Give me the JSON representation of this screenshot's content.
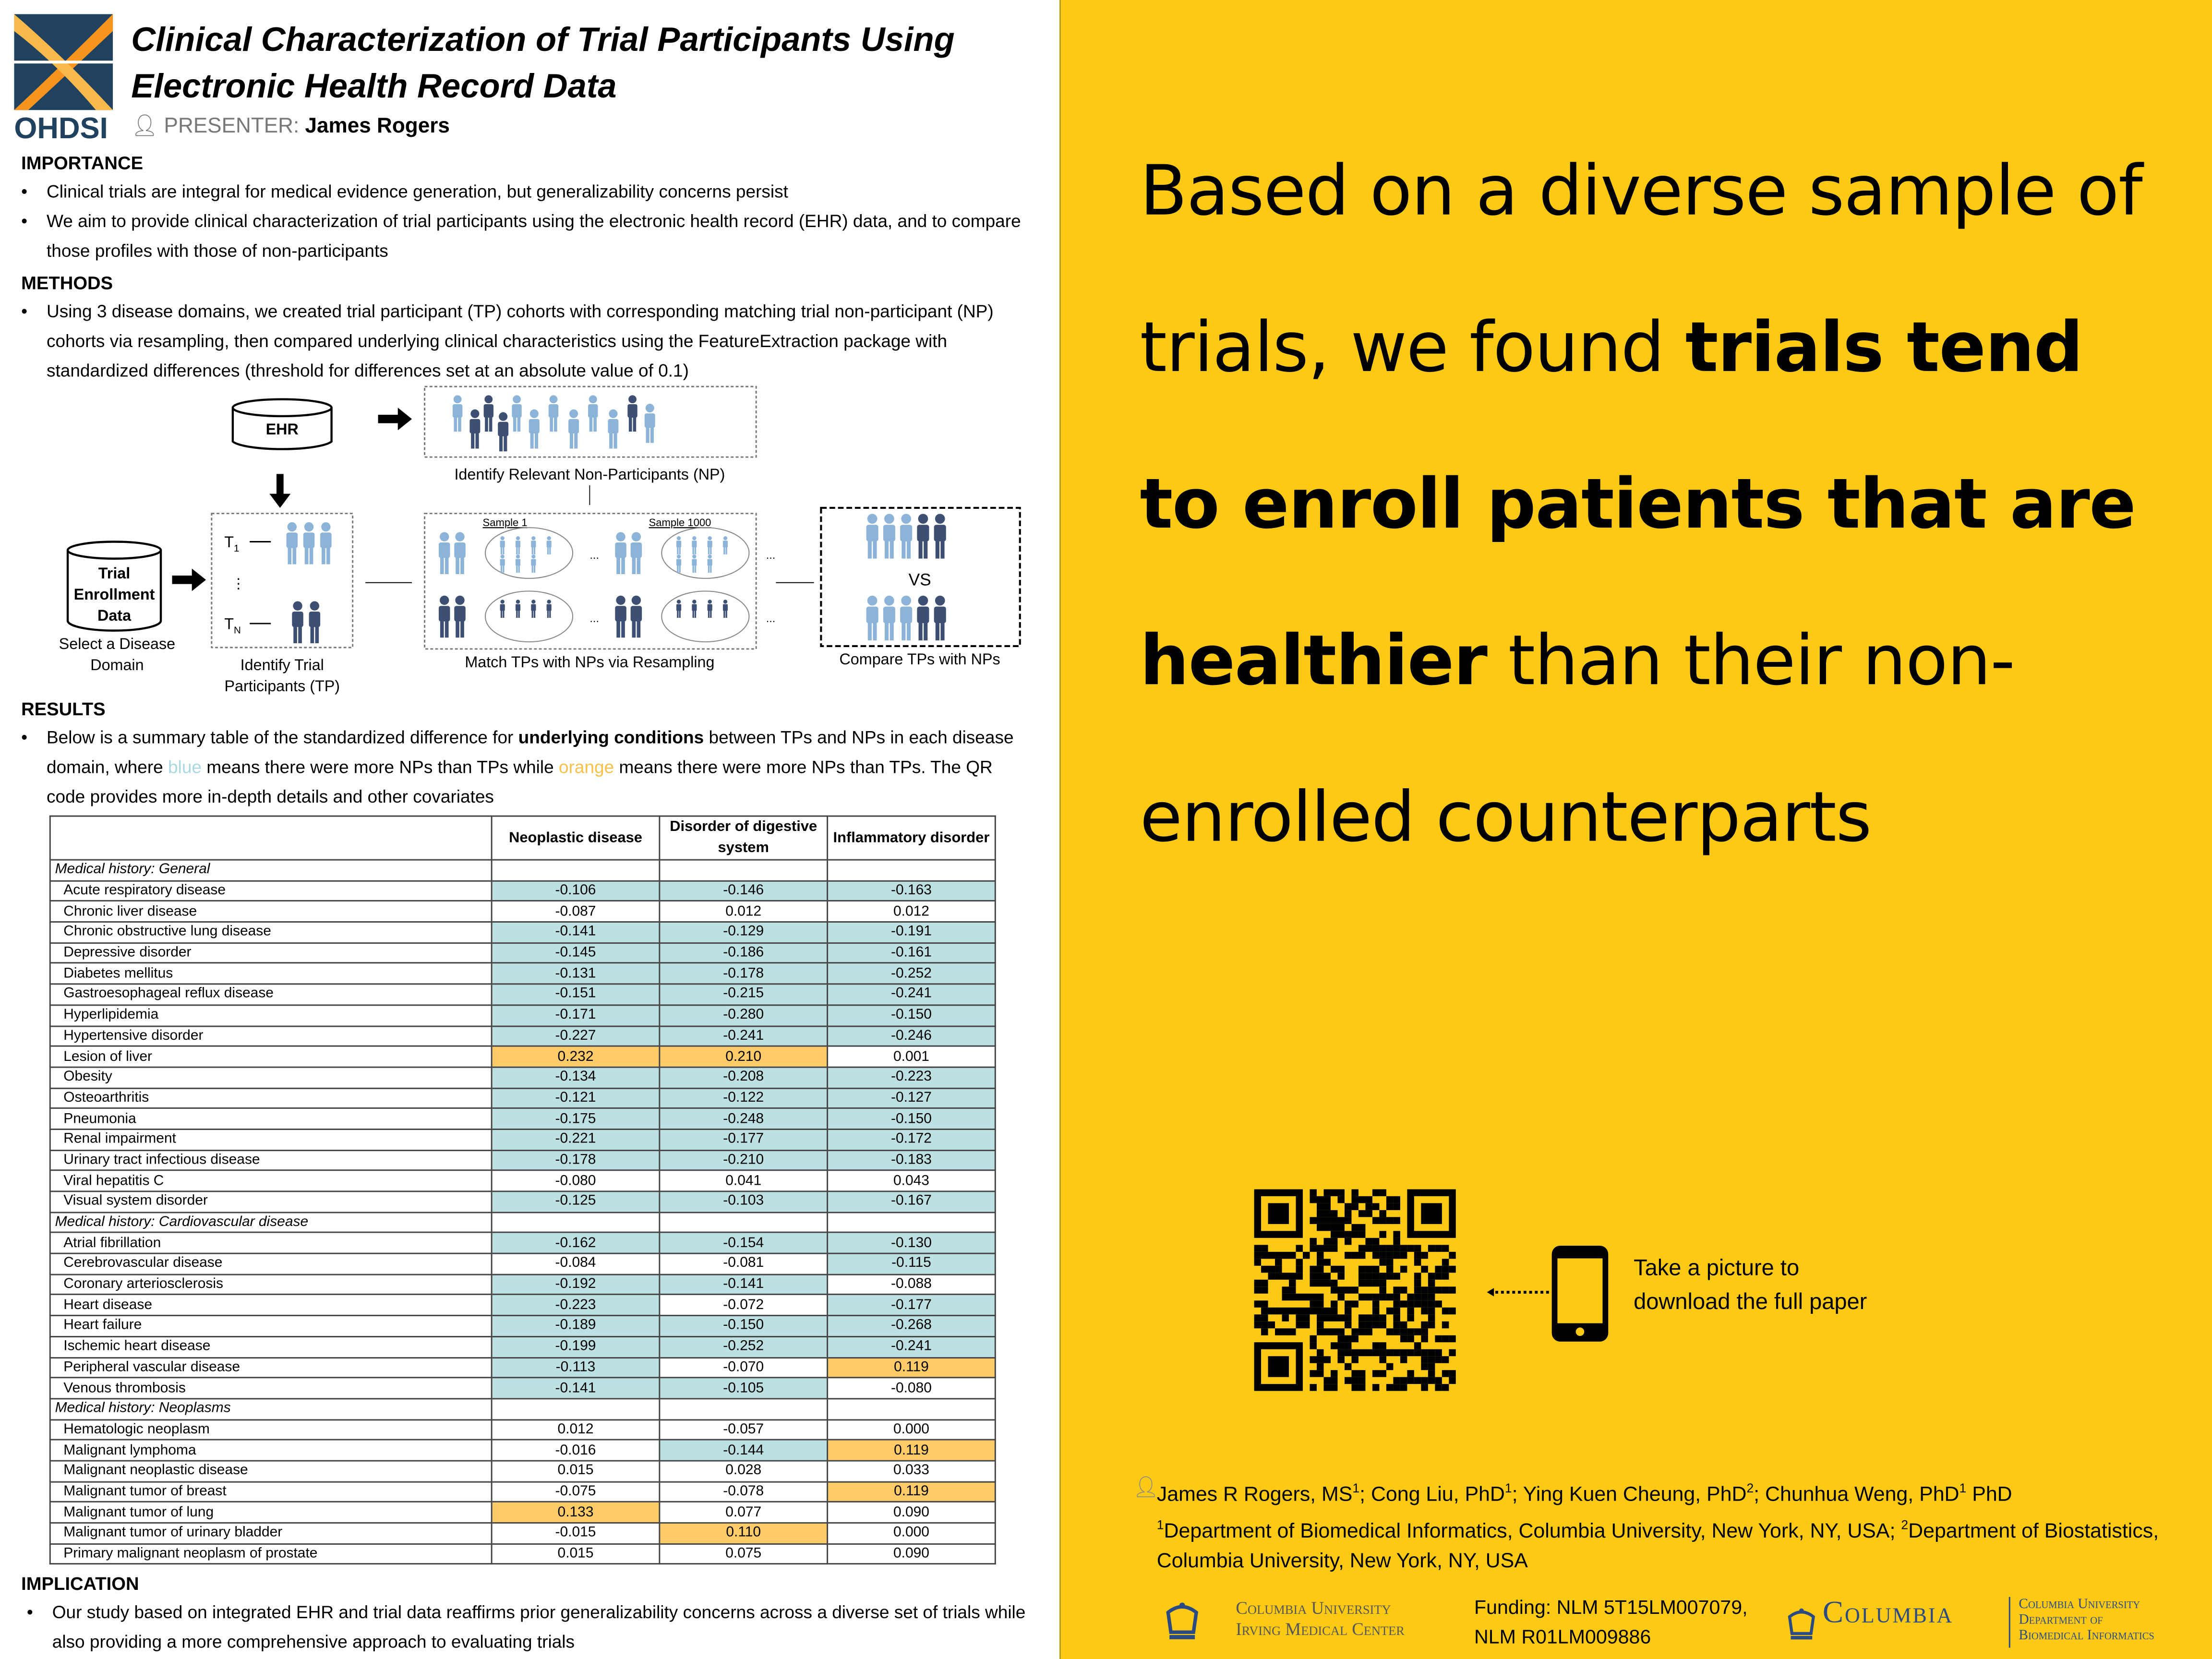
{
  "header": {
    "logo_text": "OHDSI",
    "title_line1": "Clinical Characterization of Trial Participants Using",
    "title_line2": "Electronic Health Record Data",
    "presenter_label": "PRESENTER:",
    "presenter_name": "James Rogers"
  },
  "importance": {
    "heading": "IMPORTANCE",
    "bullets": [
      "Clinical trials are integral for medical evidence generation, but generalizability concerns persist",
      "We aim to provide clinical characterization of trial participants using the electronic health record (EHR) data, and to compare those profiles with those of non-participants"
    ]
  },
  "methods": {
    "heading": "METHODS",
    "bullets": [
      "Using 3 disease domains, we created trial participant (TP) cohorts with corresponding matching trial non-participant (NP) cohorts via resampling, then compared underlying clinical characteristics using the FeatureExtraction package with standardized differences (threshold for differences set at an absolute value of 0.1)"
    ]
  },
  "diagram": {
    "ehr": "EHR",
    "trial_db_1": "Trial",
    "trial_db_2": "Enrollment",
    "trial_db_3": "Data",
    "select_1": "Select a Disease",
    "select_2": "Domain",
    "identify_np": "Identify Relevant Non-Participants (NP)",
    "t1": "T",
    "t1_sub": "1",
    "tn": "T",
    "tn_sub": "N",
    "identify_tp_1": "Identify Trial",
    "identify_tp_2": "Participants (TP)",
    "sample1": "Sample 1",
    "sample1000": "Sample 1000",
    "match": "Match TPs with NPs via Resampling",
    "vs": "VS",
    "compare": "Compare TPs with NPs",
    "ellipsis": "..."
  },
  "results": {
    "heading": "RESULTS",
    "text_a": "Below is a summary table of the standardized difference for ",
    "text_bold": "underlying conditions",
    "text_b": " between TPs and NPs in each disease domain, where ",
    "blue_word": "blue",
    "text_c": " means there were more NPs than TPs while ",
    "orange_word": "orange",
    "text_d": " means there were more NPs than TPs. The QR code provides more in-depth details and other covariates"
  },
  "colors": {
    "blue_cell": "#bde1e3",
    "orange_cell": "#fdcb68",
    "blue_word": "#a9d8e0",
    "orange_word": "#f9c04c",
    "panel": "#fcc914"
  },
  "table": {
    "columns": [
      "Neoplastic disease",
      "Disorder of digestive system",
      "Inflammatory disorder"
    ],
    "sections": [
      {
        "title": "Medical history: General",
        "rows": [
          [
            "Acute respiratory disease",
            "-0.106",
            "-0.146",
            "-0.163"
          ],
          [
            "Chronic liver disease",
            "-0.087",
            "0.012",
            "0.012"
          ],
          [
            "Chronic obstructive lung disease",
            "-0.141",
            "-0.129",
            "-0.191"
          ],
          [
            "Depressive disorder",
            "-0.145",
            "-0.186",
            "-0.161"
          ],
          [
            "Diabetes mellitus",
            "-0.131",
            "-0.178",
            "-0.252"
          ],
          [
            "Gastroesophageal reflux disease",
            "-0.151",
            "-0.215",
            "-0.241"
          ],
          [
            "Hyperlipidemia",
            "-0.171",
            "-0.280",
            "-0.150"
          ],
          [
            "Hypertensive disorder",
            "-0.227",
            "-0.241",
            "-0.246"
          ],
          [
            "Lesion of liver",
            "0.232",
            "0.210",
            "0.001"
          ],
          [
            "Obesity",
            "-0.134",
            "-0.208",
            "-0.223"
          ],
          [
            "Osteoarthritis",
            "-0.121",
            "-0.122",
            "-0.127"
          ],
          [
            "Pneumonia",
            "-0.175",
            "-0.248",
            "-0.150"
          ],
          [
            "Renal impairment",
            "-0.221",
            "-0.177",
            "-0.172"
          ],
          [
            "Urinary tract infectious disease",
            "-0.178",
            "-0.210",
            "-0.183"
          ],
          [
            "Viral hepatitis C",
            "-0.080",
            "0.041",
            "0.043"
          ],
          [
            "Visual system disorder",
            "-0.125",
            "-0.103",
            "-0.167"
          ]
        ]
      },
      {
        "title": "Medical history: Cardiovascular disease",
        "rows": [
          [
            "Atrial fibrillation",
            "-0.162",
            "-0.154",
            "-0.130"
          ],
          [
            "Cerebrovascular disease",
            "-0.084",
            "-0.081",
            "-0.115"
          ],
          [
            "Coronary arteriosclerosis",
            "-0.192",
            "-0.141",
            "-0.088"
          ],
          [
            "Heart disease",
            "-0.223",
            "-0.072",
            "-0.177"
          ],
          [
            "Heart failure",
            "-0.189",
            "-0.150",
            "-0.268"
          ],
          [
            "Ischemic heart disease",
            "-0.199",
            "-0.252",
            "-0.241"
          ],
          [
            "Peripheral vascular disease",
            "-0.113",
            "-0.070",
            "0.119"
          ],
          [
            "Venous thrombosis",
            "-0.141",
            "-0.105",
            "-0.080"
          ]
        ]
      },
      {
        "title": "Medical history: Neoplasms",
        "rows": [
          [
            "Hematologic neoplasm",
            "0.012",
            "-0.057",
            "0.000"
          ],
          [
            "Malignant lymphoma",
            "-0.016",
            "-0.144",
            "0.119"
          ],
          [
            "Malignant neoplastic disease",
            "0.015",
            "0.028",
            "0.033"
          ],
          [
            "Malignant tumor of breast",
            "-0.075",
            "-0.078",
            "0.119"
          ],
          [
            "Malignant tumor of lung",
            "0.133",
            "0.077",
            "0.090"
          ],
          [
            "Malignant tumor of urinary bladder",
            "-0.015",
            "0.110",
            "0.000"
          ],
          [
            "Primary malignant neoplasm of prostate",
            "0.015",
            "0.075",
            "0.090"
          ]
        ]
      }
    ]
  },
  "implication": {
    "heading": "IMPLICATION",
    "bullets": [
      "Our study based on integrated EHR and trial data reaffirms prior generalizability concerns across a diverse set of trials while also providing a more comprehensive approach to evaluating trials"
    ]
  },
  "finding": {
    "p1": "Based on a diverse sample of trials, we found ",
    "bold": "trials tend to enroll patients that are healthier",
    "p2": " than their non-enrolled counterparts"
  },
  "qr": {
    "line1": "Take a picture to",
    "line2": "download the full paper"
  },
  "authors": {
    "a1": "James R Rogers, MS",
    "s1": "1",
    "a2": "; Cong Liu, PhD",
    "s2": "1",
    "a3": "; Ying Kuen Cheung, PhD",
    "s3": "2",
    "a4": "; Chunhua Weng, PhD",
    "s4": "1",
    "a5": " PhD",
    "aff_s1": "1",
    "aff1": "Department of Biomedical Informatics, Columbia University, New York, NY, USA; ",
    "aff_s2": "2",
    "aff2": "Department of Biostatistics, Columbia University, New York, NY, USA"
  },
  "footer": {
    "cumc1": "Columbia University",
    "cumc2": "Irving Medical Center",
    "funding1": "Funding: NLM 5T15LM007079,",
    "funding2": "NLM R01LM009886",
    "columbia": "Columbia",
    "dbmi1": "Columbia University",
    "dbmi2": "Department of",
    "dbmi3": "Biomedical Informatics"
  }
}
